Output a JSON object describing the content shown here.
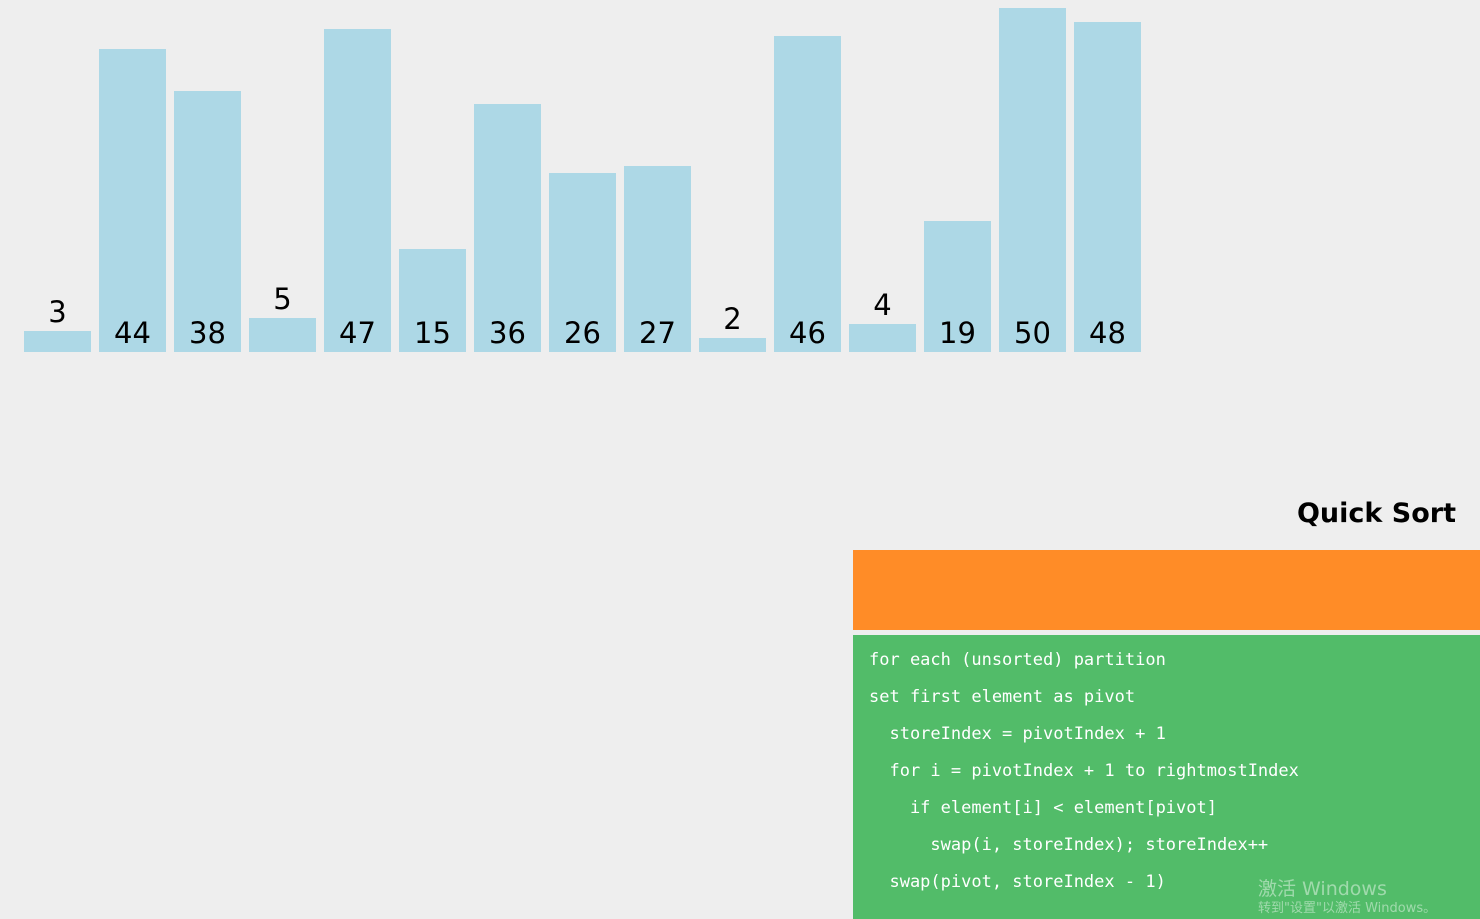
{
  "chart_data": {
    "type": "bar",
    "categories": [
      "3",
      "44",
      "38",
      "5",
      "47",
      "15",
      "36",
      "26",
      "27",
      "2",
      "46",
      "4",
      "19",
      "50",
      "48"
    ],
    "values": [
      3,
      44,
      38,
      5,
      47,
      15,
      36,
      26,
      27,
      2,
      46,
      4,
      19,
      50,
      48
    ],
    "bar_color": "#add8e6"
  },
  "title": "Quick Sort",
  "status_box": {
    "color": "#ff8c27",
    "text": ""
  },
  "pseudocode": {
    "color": "#52bc69",
    "lines": [
      "for each (unsorted) partition",
      "set first element as pivot",
      "  storeIndex = pivotIndex + 1",
      "  for i = pivotIndex + 1 to rightmostIndex",
      "    if element[i] < element[pivot]",
      "      swap(i, storeIndex); storeIndex++",
      "  swap(pivot, storeIndex - 1)"
    ]
  },
  "watermark": {
    "line1": "激活 Windows",
    "line2": "转到\"设置\"以激活 Windows。"
  }
}
